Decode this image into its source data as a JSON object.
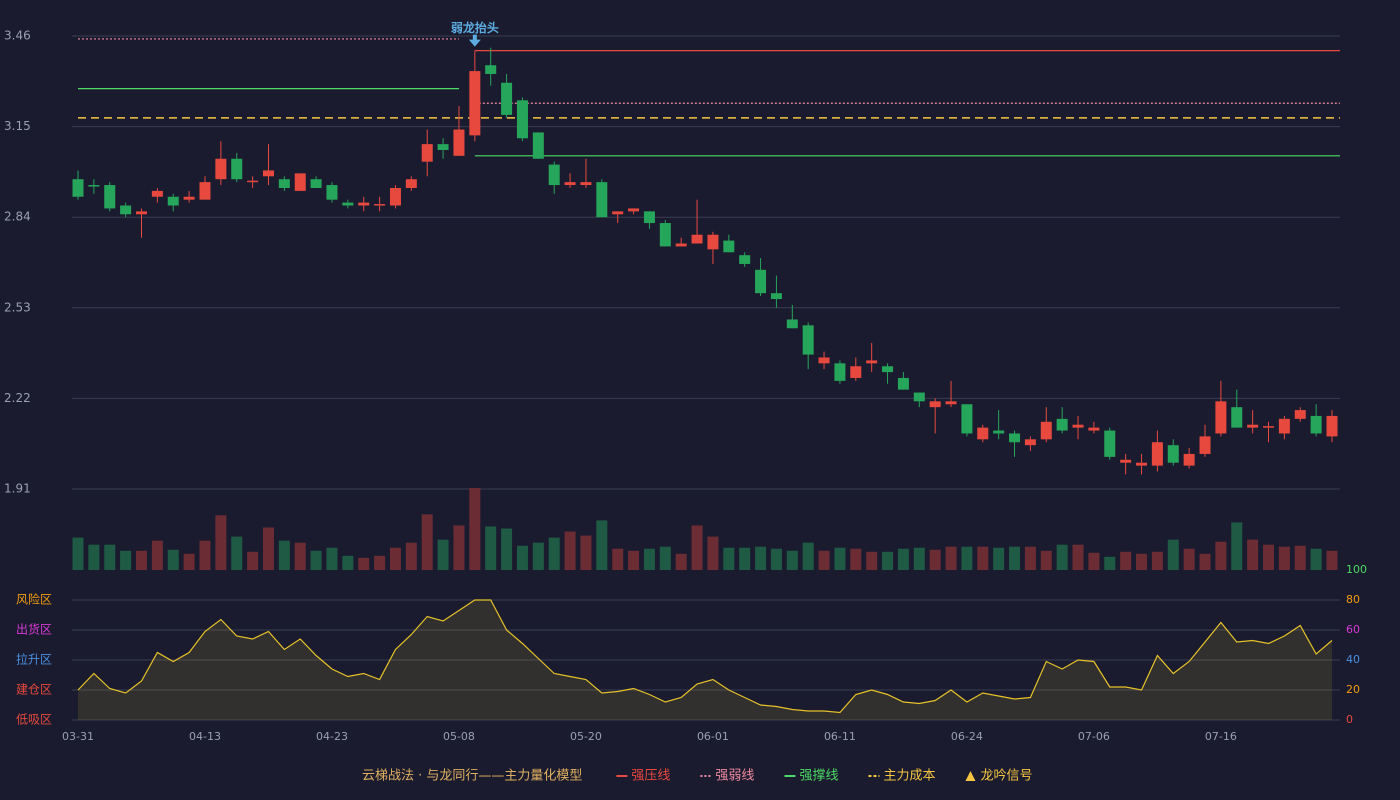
{
  "chart_data": [
    {
      "type": "candlestick",
      "ylim": [
        1.91,
        3.46
      ],
      "yticks": [
        1.91,
        2.22,
        2.53,
        2.84,
        3.15,
        3.46
      ],
      "grid": true,
      "up_color": "#e8493f",
      "down_color": "#26a65b",
      "open": [
        2.97,
        2.95,
        2.95,
        2.88,
        2.85,
        2.91,
        2.91,
        2.9,
        2.9,
        2.97,
        3.04,
        2.96,
        2.98,
        2.97,
        2.93,
        2.97,
        2.95,
        2.89,
        2.88,
        2.88,
        2.88,
        2.94,
        3.03,
        3.09,
        3.05,
        3.12,
        3.36,
        3.3,
        3.24,
        3.13,
        3.02,
        2.95,
        2.95,
        2.96,
        2.85,
        2.86,
        2.86,
        2.82,
        2.74,
        2.75,
        2.73,
        2.76,
        2.71,
        2.66,
        2.58,
        2.49,
        2.47,
        2.34,
        2.34,
        2.29,
        2.34,
        2.33,
        2.29,
        2.24,
        2.19,
        2.2,
        2.2,
        2.08,
        2.11,
        2.1,
        2.06,
        2.08,
        2.15,
        2.12,
        2.11,
        2.11,
        2.0,
        1.99,
        1.99,
        2.06,
        1.99,
        2.03,
        2.1,
        2.19,
        2.12,
        2.12,
        2.1,
        2.15,
        2.16,
        2.09
      ],
      "close": [
        2.91,
        2.945,
        2.87,
        2.85,
        2.86,
        2.93,
        2.88,
        2.91,
        2.96,
        3.04,
        2.97,
        2.965,
        3.0,
        2.94,
        2.99,
        2.94,
        2.9,
        2.88,
        2.89,
        2.885,
        2.94,
        2.97,
        3.09,
        3.07,
        3.14,
        3.34,
        3.33,
        3.19,
        3.11,
        3.04,
        2.95,
        2.96,
        2.96,
        2.84,
        2.86,
        2.87,
        2.82,
        2.74,
        2.75,
        2.78,
        2.78,
        2.72,
        2.68,
        2.58,
        2.56,
        2.46,
        2.37,
        2.36,
        2.28,
        2.33,
        2.35,
        2.31,
        2.25,
        2.21,
        2.21,
        2.21,
        2.1,
        2.12,
        2.1,
        2.07,
        2.08,
        2.14,
        2.11,
        2.13,
        2.12,
        2.02,
        2.01,
        2.0,
        2.07,
        2.0,
        2.03,
        2.09,
        2.21,
        2.12,
        2.13,
        2.125,
        2.15,
        2.18,
        2.1,
        2.16
      ],
      "high": [
        3.0,
        2.97,
        2.96,
        2.89,
        2.87,
        2.94,
        2.92,
        2.93,
        2.98,
        3.1,
        3.06,
        2.98,
        3.09,
        2.98,
        2.99,
        2.98,
        2.96,
        2.9,
        2.91,
        2.91,
        2.95,
        2.98,
        3.14,
        3.11,
        3.22,
        3.41,
        3.42,
        3.33,
        3.25,
        3.13,
        3.03,
        2.99,
        3.04,
        2.97,
        2.86,
        2.87,
        2.86,
        2.83,
        2.77,
        2.9,
        2.79,
        2.78,
        2.72,
        2.7,
        2.64,
        2.54,
        2.48,
        2.38,
        2.35,
        2.36,
        2.41,
        2.34,
        2.31,
        2.24,
        2.22,
        2.28,
        2.2,
        2.13,
        2.18,
        2.11,
        2.09,
        2.19,
        2.19,
        2.16,
        2.14,
        2.12,
        2.03,
        2.03,
        2.11,
        2.08,
        2.05,
        2.13,
        2.28,
        2.25,
        2.18,
        2.14,
        2.16,
        2.19,
        2.2,
        2.18
      ],
      "low": [
        2.9,
        2.92,
        2.86,
        2.84,
        2.77,
        2.89,
        2.86,
        2.89,
        2.9,
        2.95,
        2.96,
        2.94,
        2.95,
        2.93,
        2.93,
        2.94,
        2.89,
        2.87,
        2.86,
        2.86,
        2.87,
        2.93,
        2.98,
        3.04,
        3.05,
        3.1,
        3.29,
        3.18,
        3.1,
        3.04,
        2.92,
        2.94,
        2.94,
        2.84,
        2.82,
        2.85,
        2.8,
        2.74,
        2.74,
        2.75,
        2.68,
        2.72,
        2.67,
        2.57,
        2.53,
        2.46,
        2.32,
        2.32,
        2.27,
        2.28,
        2.31,
        2.27,
        2.25,
        2.19,
        2.1,
        2.19,
        2.09,
        2.07,
        2.08,
        2.02,
        2.04,
        2.07,
        2.1,
        2.08,
        2.1,
        2.01,
        1.96,
        1.96,
        1.97,
        1.99,
        1.98,
        2.02,
        2.09,
        2.12,
        2.1,
        2.07,
        2.08,
        2.14,
        2.09,
        2.07
      ],
      "lines": [
        {
          "name": "强压线",
          "color": "#e8493f",
          "style": "solid",
          "segments": [
            {
              "from": 25,
              "to": 79,
              "value": 3.41
            }
          ]
        },
        {
          "name": "强弱线",
          "color": "#f08aa0",
          "style": "dotted",
          "segments": [
            {
              "from": 0,
              "to": 24,
              "value": 3.45
            },
            {
              "from": 25,
              "to": 79,
              "value": 3.23
            }
          ]
        },
        {
          "name": "强撑线",
          "color": "#4cd964",
          "style": "solid",
          "segments": [
            {
              "from": 0,
              "to": 24,
              "value": 3.28
            },
            {
              "from": 25,
              "to": 79,
              "value": 3.05
            }
          ]
        },
        {
          "name": "主力成本",
          "color": "#f5c542",
          "style": "dashed",
          "segments": [
            {
              "from": 0,
              "to": 79,
              "value": 3.18
            }
          ]
        }
      ],
      "signal": {
        "name": "龙吟信号",
        "color": "#f5c542"
      },
      "annotation": {
        "text": "弱龙抬头",
        "index": 25,
        "color": "#5dade2"
      }
    },
    {
      "type": "bar",
      "name": "volume",
      "up_color": "#6b2c34",
      "down_color": "#1f5a45",
      "values": [
        32,
        25,
        25,
        19,
        19,
        29,
        20,
        16,
        29,
        54,
        33,
        18,
        42,
        29,
        27,
        19,
        22,
        14,
        12,
        14,
        22,
        27,
        55,
        30,
        44,
        81,
        43,
        41,
        24,
        27,
        32,
        38,
        34,
        49,
        21,
        19,
        21,
        23,
        16,
        44,
        33,
        22,
        22,
        23,
        21,
        19,
        27,
        19,
        22,
        21,
        18,
        18,
        21,
        22,
        20,
        23,
        23,
        23,
        22,
        23,
        23,
        19,
        25,
        25,
        17,
        13,
        18,
        16,
        18,
        30,
        21,
        16,
        28,
        47,
        30,
        25,
        23,
        24,
        21,
        19
      ]
    },
    {
      "type": "line",
      "color": "#e6c229",
      "ylim": [
        0,
        100
      ],
      "yticks": [
        0,
        20,
        40,
        60,
        80,
        100
      ],
      "ytick_colors": [
        "#e8493f",
        "#f39c12",
        "#4a90e2",
        "#d63ad6",
        "#f39c12",
        "#4cd964"
      ],
      "zones": [
        {
          "label": "风险区",
          "value": 80,
          "color": "#f39c12"
        },
        {
          "label": "出货区",
          "value": 60,
          "color": "#d63ad6"
        },
        {
          "label": "拉升区",
          "value": 40,
          "color": "#4a90e2"
        },
        {
          "label": "建仓区",
          "value": 20,
          "color": "#e8493f"
        },
        {
          "label": "低吸区",
          "value": 0,
          "color": "#e8493f"
        }
      ],
      "values": [
        20,
        31,
        21,
        18,
        26,
        45,
        39,
        45,
        59,
        67,
        56,
        54,
        59,
        47,
        54,
        43,
        34,
        29,
        31,
        27,
        47,
        57,
        69,
        66,
        73,
        80,
        80,
        60,
        51,
        41,
        31,
        29,
        27,
        18,
        19,
        21,
        17,
        12,
        15,
        24,
        27,
        20,
        15,
        10,
        9,
        7,
        6,
        6,
        5,
        17,
        20,
        17,
        12,
        11,
        13,
        20,
        12,
        18,
        16,
        14,
        15,
        39,
        34,
        40,
        39,
        22,
        22,
        20,
        43,
        31,
        39,
        52,
        65,
        52,
        53,
        51,
        56,
        63,
        44,
        53
      ],
      "categories": [
        "03-31",
        null,
        null,
        null,
        null,
        null,
        null,
        null,
        "04-13",
        null,
        null,
        null,
        null,
        null,
        null,
        null,
        "04-23",
        null,
        null,
        null,
        null,
        null,
        null,
        null,
        "05-08",
        null,
        null,
        null,
        null,
        null,
        null,
        null,
        "05-20",
        null,
        null,
        null,
        null,
        null,
        null,
        null,
        "06-01",
        null,
        null,
        null,
        null,
        null,
        null,
        null,
        "06-11",
        null,
        null,
        null,
        null,
        null,
        null,
        null,
        "06-24",
        null,
        null,
        null,
        null,
        null,
        null,
        null,
        "07-06",
        null,
        null,
        null,
        null,
        null,
        null,
        null,
        "07-16",
        null,
        null,
        null,
        null,
        null,
        null,
        null
      ]
    }
  ],
  "legend_title": "云梯战法 · 与龙同行——主力量化模型"
}
